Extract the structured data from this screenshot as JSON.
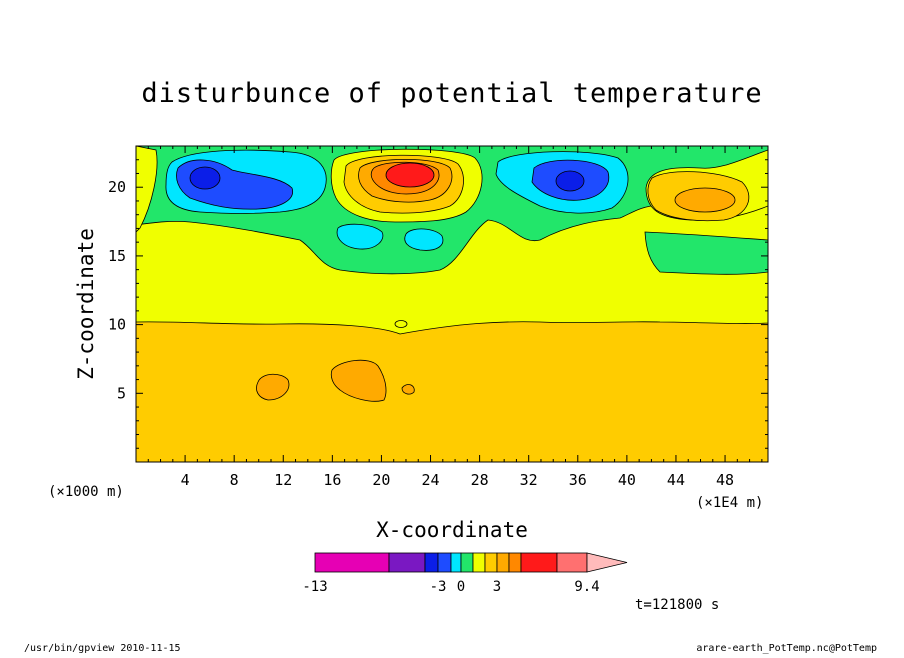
{
  "chart_data": {
    "type": "heatmap",
    "title": "disturbunce of potential temperature",
    "xlabel": "X-coordinate",
    "ylabel": "Z-coordinate",
    "x_unit": "(×1000 m)",
    "x_multiplier": "(×1E4 m)",
    "xlim": [
      0,
      51.5
    ],
    "ylim": [
      0,
      23
    ],
    "x_ticks": [
      4,
      8,
      12,
      16,
      20,
      24,
      28,
      32,
      36,
      40,
      44,
      48
    ],
    "x_tick_labels": [
      "4",
      "8",
      "12",
      "16",
      "20",
      "24",
      "28",
      "32",
      "36",
      "40",
      "44",
      "48"
    ],
    "y_ticks": [
      5,
      10,
      15,
      20
    ],
    "y_tick_labels": [
      "5",
      "10",
      "15",
      "20"
    ],
    "colorbar": {
      "colors": [
        "#e600b4",
        "#7a18c2",
        "#0b1ee8",
        "#1e4cff",
        "#00e6ff",
        "#22e66a",
        "#f0ff00",
        "#ffcc00",
        "#ffaa00",
        "#ff8800",
        "#ff1a1a",
        "#ff7070",
        "#ffbbbb"
      ],
      "labels": [
        "-13",
        "-3",
        "0",
        "3",
        "9.4"
      ]
    },
    "features": [
      {
        "kind": "cold",
        "x": 6,
        "z": 20.3,
        "level": -3
      },
      {
        "kind": "cold",
        "x": 35,
        "z": 20.2,
        "level": -3
      },
      {
        "kind": "warm",
        "x": 22.5,
        "z": 20.8,
        "level": 9.4
      },
      {
        "kind": "warm",
        "x": 46,
        "z": 19,
        "level": 3
      }
    ],
    "time_label": "t=121800 s"
  },
  "footer": {
    "left": "/usr/bin/gpview  2010-11-15",
    "right": "arare-earth_PotTemp.nc@PotTemp"
  }
}
